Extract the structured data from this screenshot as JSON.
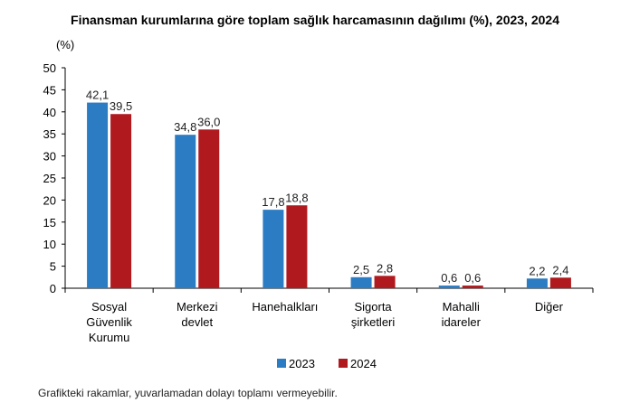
{
  "chart_data": {
    "type": "bar",
    "title": "Finansman kurumlarına göre toplam sağlık harcamasının dağılımı (%), 2023, 2024",
    "ylabel": "(%)",
    "xlabel": "",
    "ylim": [
      0,
      50
    ],
    "yticks": [
      0,
      5,
      10,
      15,
      20,
      25,
      30,
      35,
      40,
      45,
      50
    ],
    "grid": false,
    "legend_position": "bottom",
    "categories": [
      [
        "Sosyal",
        "Güvenlik",
        "Kurumu"
      ],
      [
        "Merkezi",
        "devlet"
      ],
      [
        "Hanehalkları"
      ],
      [
        "Sigorta",
        "şirketleri"
      ],
      [
        "Mahalli",
        "idareler"
      ],
      [
        "Diğer"
      ]
    ],
    "series": [
      {
        "name": "2023",
        "color": "#2b7cc3",
        "values": [
          42.1,
          34.8,
          17.8,
          2.5,
          0.6,
          2.2
        ],
        "labels": [
          "42,1",
          "34,8",
          "17,8",
          "2,5",
          "0,6",
          "2,2"
        ]
      },
      {
        "name": "2024",
        "color": "#b0191e",
        "values": [
          39.5,
          36.0,
          18.8,
          2.8,
          0.6,
          2.4
        ],
        "labels": [
          "39,5",
          "36,0",
          "18,8",
          "2,8",
          "0,6",
          "2,4"
        ]
      }
    ]
  },
  "note": "Grafikteki rakamlar, yuvarlamadan dolayı toplamı vermeyebilir."
}
